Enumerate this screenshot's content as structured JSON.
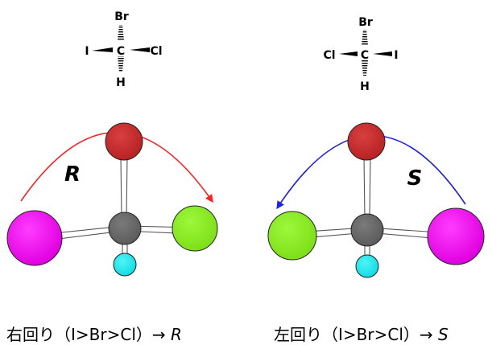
{
  "left": {
    "formula": {
      "top": "Br",
      "left": "I",
      "center": "C",
      "right": "Cl",
      "bottom": "H"
    },
    "rotation_letter": "R",
    "caption": {
      "text": "右回り（I>Br>Cl）→ ",
      "result": "R"
    },
    "arrow_color": "#ff2020"
  },
  "right": {
    "formula": {
      "top": "Br",
      "left": "Cl",
      "center": "C",
      "right": "I",
      "bottom": "H"
    },
    "rotation_letter": "S",
    "caption": {
      "text": "左回り（I>Br>Cl）→ ",
      "result": "S"
    },
    "arrow_color": "#2020ee"
  },
  "atom_colors": {
    "Br": "#c62a2a",
    "I": "#ee10ee",
    "Cl": "#88ee22",
    "C": "#6a6a6a",
    "H": "#22e8ee"
  }
}
